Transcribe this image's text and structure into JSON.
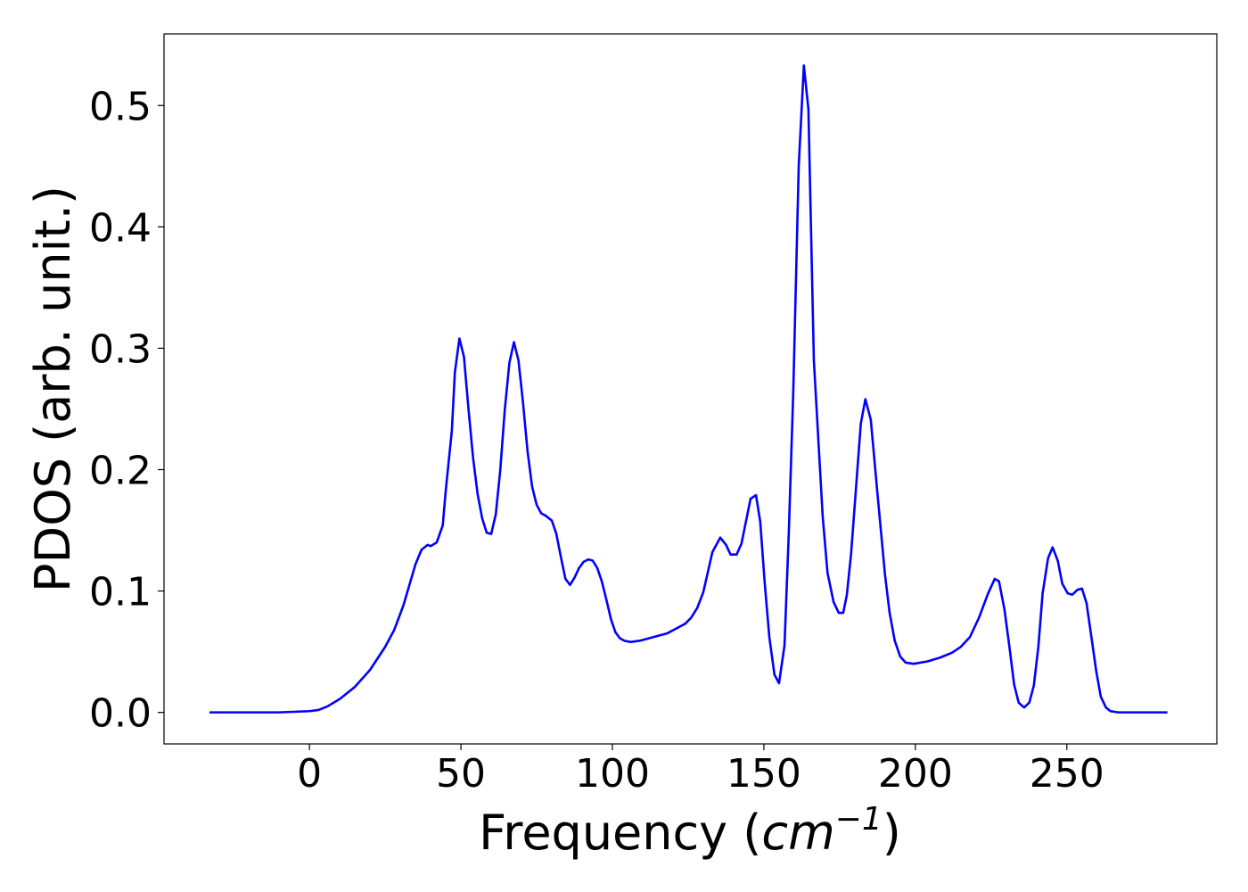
{
  "chart_data": {
    "type": "line",
    "xlabel": [
      "Frequency (",
      "cm",
      "−1",
      ")"
    ],
    "ylabel": "PDOS (arb. unit.)",
    "xlim": [
      -48,
      299.5
    ],
    "ylim": [
      -0.026,
      0.559
    ],
    "xticks": [
      0,
      50,
      100,
      150,
      200,
      250
    ],
    "yticks": [
      {
        "value": 0,
        "label": "0.0"
      },
      {
        "value": 0.1,
        "label": "0.1"
      },
      {
        "value": 0.2,
        "label": "0.2"
      },
      {
        "value": 0.3,
        "label": "0.3"
      },
      {
        "value": 0.4,
        "label": "0.4"
      },
      {
        "value": 0.5,
        "label": "0.5"
      }
    ],
    "grid": false,
    "x": [
      -33,
      -10,
      0,
      3,
      6,
      10,
      15,
      20,
      25,
      28,
      31,
      33,
      35,
      37,
      39,
      40,
      42,
      44,
      45,
      47,
      48,
      49.5,
      51,
      52.5,
      54,
      55.5,
      57,
      58.5,
      60,
      61.5,
      63,
      64.5,
      66,
      67.5,
      69,
      70.5,
      72,
      73.5,
      75,
      76.5,
      78,
      80,
      81.5,
      83,
      84.5,
      86,
      87.5,
      89,
      90.5,
      92,
      93.5,
      95,
      96.5,
      98,
      99.5,
      101,
      102.5,
      104,
      106,
      109,
      112,
      115,
      118,
      121,
      124,
      126,
      128,
      130,
      132,
      133,
      135.6,
      137.5,
      139,
      141,
      142.6,
      145.6,
      147.4,
      148.8,
      150.3,
      151.8,
      153.5,
      155,
      156.8,
      158.2,
      159.7,
      161.5,
      163.2,
      164.7,
      166.5,
      169.4,
      171,
      173,
      174.7,
      176.2,
      177.4,
      178.8,
      182,
      183.5,
      185.3,
      187.5,
      190,
      191.5,
      193.2,
      195,
      196.8,
      199.4,
      204,
      208,
      212,
      215,
      218,
      221,
      224,
      226.2,
      227.6,
      229.4,
      231.2,
      232.6,
      234.1,
      235.9,
      237.6,
      239.1,
      240.6,
      242,
      243.8,
      245.3,
      247,
      248.5,
      250.3,
      251.8,
      253.5,
      255,
      256.5,
      258,
      259.7,
      261.2,
      262.9,
      264.4,
      267,
      283.2
    ],
    "series": [
      {
        "color": "#0000ff",
        "values": [
          0,
          0,
          0.001,
          0.002,
          0.005,
          0.011,
          0.021,
          0.035,
          0.054,
          0.068,
          0.088,
          0.105,
          0.122,
          0.134,
          0.138,
          0.137,
          0.14,
          0.154,
          0.183,
          0.232,
          0.28,
          0.308,
          0.293,
          0.25,
          0.21,
          0.18,
          0.16,
          0.148,
          0.147,
          0.163,
          0.2,
          0.25,
          0.288,
          0.305,
          0.29,
          0.255,
          0.215,
          0.186,
          0.171,
          0.164,
          0.162,
          0.158,
          0.147,
          0.128,
          0.11,
          0.105,
          0.111,
          0.119,
          0.124,
          0.126,
          0.125,
          0.119,
          0.108,
          0.093,
          0.077,
          0.066,
          0.061,
          0.059,
          0.058,
          0.059,
          0.061,
          0.063,
          0.065,
          0.069,
          0.073,
          0.078,
          0.086,
          0.099,
          0.121,
          0.132,
          0.144,
          0.138,
          0.13,
          0.13,
          0.139,
          0.176,
          0.179,
          0.157,
          0.106,
          0.062,
          0.031,
          0.024,
          0.055,
          0.146,
          0.264,
          0.45,
          0.533,
          0.497,
          0.29,
          0.162,
          0.115,
          0.091,
          0.082,
          0.082,
          0.097,
          0.131,
          0.238,
          0.258,
          0.241,
          0.18,
          0.113,
          0.082,
          0.059,
          0.046,
          0.041,
          0.04,
          0.042,
          0.045,
          0.049,
          0.054,
          0.062,
          0.078,
          0.098,
          0.11,
          0.108,
          0.085,
          0.051,
          0.023,
          0.008,
          0.004,
          0.008,
          0.022,
          0.054,
          0.098,
          0.127,
          0.136,
          0.125,
          0.106,
          0.098,
          0.097,
          0.101,
          0.102,
          0.09,
          0.064,
          0.034,
          0.013,
          0.004,
          0.001,
          0,
          0
        ]
      }
    ]
  }
}
